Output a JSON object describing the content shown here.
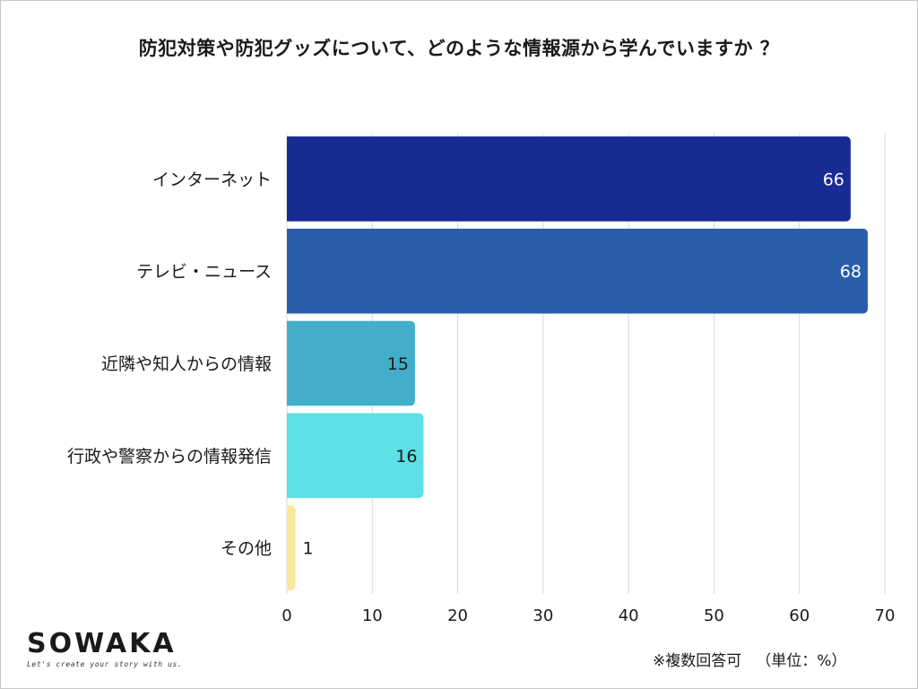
{
  "chart_data": {
    "type": "bar",
    "orientation": "horizontal",
    "title": "防犯対策や防犯グッズについて、どのような情報源から学んでいますか ？",
    "categories": [
      "インターネット",
      "テレビ・ニュース",
      "近隣や知人からの情報",
      "行政や警察からの情報発信",
      "その他"
    ],
    "values": [
      66,
      68,
      15,
      16,
      1
    ],
    "colors": [
      "#172b94",
      "#2a5eab",
      "#42aeca",
      "#5de0e6",
      "#fce699"
    ],
    "label_colors": [
      "#ffffff",
      "#ffffff",
      "#1a1a1a",
      "#1a1a1a",
      "#1a1a1a"
    ],
    "xlim": [
      0,
      70
    ],
    "xticks": [
      0,
      10,
      20,
      30,
      40,
      50,
      60,
      70
    ],
    "xlabel": "",
    "ylabel": "",
    "grid": "vertical"
  },
  "logo": {
    "name": "SOWAKA",
    "tagline": "Let's create your story with us."
  },
  "footnote": {
    "multiple": "※複数回答可",
    "unit": "（単位：%）"
  }
}
